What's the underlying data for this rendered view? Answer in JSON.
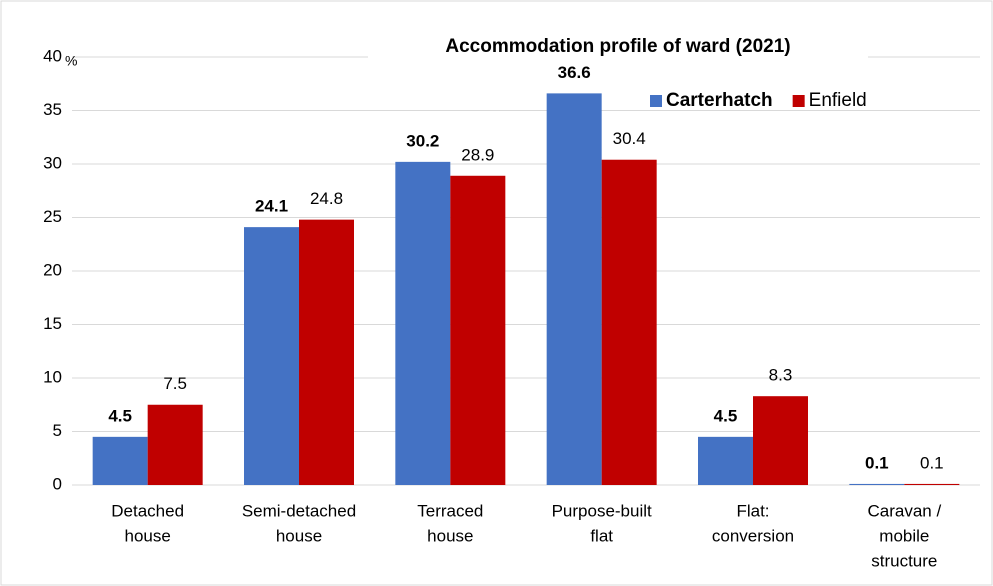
{
  "chart_data": {
    "type": "bar",
    "title": "Accommodation  profile of ward (2021)",
    "y_label": "%",
    "categories": [
      [
        "Detached",
        "house"
      ],
      [
        "Semi-detached",
        "house"
      ],
      [
        "Terraced",
        "house"
      ],
      [
        "Purpose-built",
        "flat"
      ],
      [
        "Flat:",
        "conversion"
      ],
      [
        "Caravan /",
        "mobile",
        "structure"
      ]
    ],
    "series": [
      {
        "name": "Carterhatch",
        "color": "#4472c4",
        "label_color": "#2f5597",
        "values": [
          4.5,
          24.1,
          30.2,
          36.6,
          4.5,
          0.1
        ]
      },
      {
        "name": "Enfield",
        "color": "#c00000",
        "label_color": "#c00000",
        "values": [
          7.5,
          24.8,
          28.9,
          30.4,
          8.3,
          0.1
        ]
      }
    ],
    "ylim": [
      0,
      40
    ],
    "yticks": [
      0,
      5,
      10,
      15,
      20,
      25,
      30,
      35,
      40
    ],
    "grid": true,
    "legend": "top-right"
  }
}
